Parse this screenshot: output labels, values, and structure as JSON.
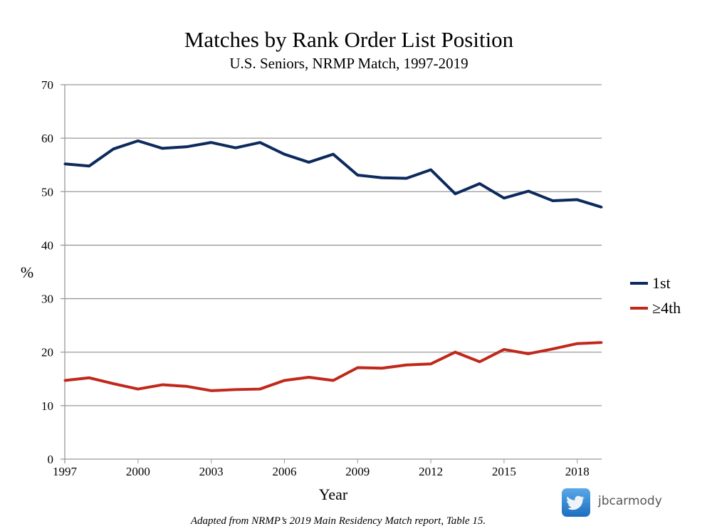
{
  "chart_data": {
    "type": "line",
    "title": "Matches by Rank Order List Position",
    "subtitle": "U.S. Seniors, NRMP Match, 1997-2019",
    "xlabel": "Year",
    "ylabel": "%",
    "ylim": [
      0,
      70
    ],
    "xlim": [
      1997,
      2019
    ],
    "yticks": [
      0,
      10,
      20,
      30,
      40,
      50,
      60,
      70
    ],
    "xticks": [
      1997,
      2000,
      2003,
      2006,
      2009,
      2012,
      2015,
      2018
    ],
    "grid": true,
    "legend": "right",
    "x": [
      1997,
      1998,
      1999,
      2000,
      2001,
      2002,
      2003,
      2004,
      2005,
      2006,
      2007,
      2008,
      2009,
      2010,
      2011,
      2012,
      2013,
      2014,
      2015,
      2016,
      2017,
      2018,
      2019
    ],
    "series": [
      {
        "name": "1st",
        "color": "#0d2a5e",
        "values": [
          55.2,
          54.8,
          58,
          59.5,
          58.1,
          58.4,
          59.2,
          58.2,
          59.2,
          57,
          55.5,
          57,
          53.1,
          52.6,
          52.5,
          54.1,
          49.6,
          51.5,
          48.8,
          50.1,
          48.3,
          48.5,
          47.1
        ]
      },
      {
        "name": "≥4th",
        "color": "#c0281b",
        "values": [
          14.7,
          15.2,
          14.1,
          13.1,
          13.9,
          13.6,
          12.8,
          13.0,
          13.1,
          14.7,
          15.3,
          14.7,
          17.1,
          17.0,
          17.6,
          17.8,
          20.0,
          18.2,
          20.5,
          19.7,
          20.6,
          21.6,
          21.8
        ]
      }
    ],
    "source": "Adapted from NRMP’s 2019 Main Residency Match report, Table 15."
  },
  "credit": {
    "handle": "jbcarmody",
    "icon": "twitter-icon"
  }
}
